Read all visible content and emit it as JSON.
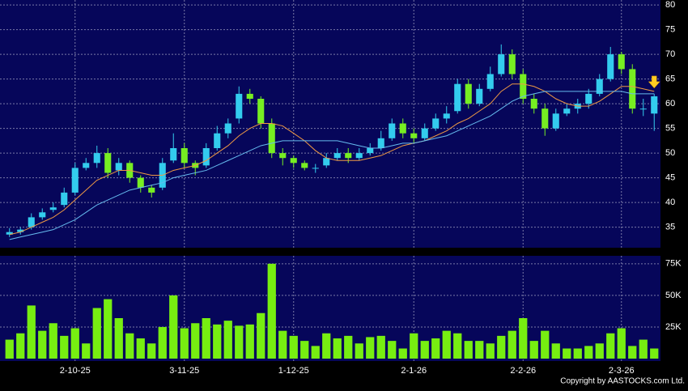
{
  "chart_data": {
    "type": "candlestick",
    "categories": [
      null,
      null,
      null,
      null,
      null,
      null,
      "2-10-25",
      null,
      null,
      null,
      null,
      null,
      null,
      null,
      null,
      null,
      "3-11-25",
      null,
      null,
      null,
      null,
      null,
      null,
      null,
      null,
      null,
      "1-12-25",
      null,
      null,
      null,
      null,
      null,
      null,
      null,
      null,
      null,
      null,
      "2-1-26",
      null,
      null,
      null,
      null,
      null,
      null,
      null,
      null,
      null,
      "2-2-26",
      null,
      null,
      null,
      null,
      null,
      null,
      null,
      null,
      "2-3-26",
      null,
      null,
      null
    ],
    "open": [
      33.5,
      34,
      35,
      37,
      38.5,
      39.5,
      42,
      47,
      48,
      50,
      46.5,
      48,
      45,
      43,
      43,
      48.5,
      51,
      48,
      47.5,
      51,
      54,
      57,
      62,
      61,
      56,
      50,
      49,
      48,
      47,
      47.5,
      49,
      50,
      49,
      50,
      51,
      53,
      56,
      54,
      53,
      55,
      57,
      58.5,
      64,
      60,
      63,
      66,
      70,
      66,
      61,
      59,
      55,
      58,
      59,
      60,
      62,
      65,
      70,
      67,
      59,
      58
    ],
    "high": [
      34.8,
      35,
      37.8,
      38.8,
      40,
      43,
      48,
      49,
      51.5,
      51,
      49,
      48.5,
      45.5,
      43.5,
      49,
      54,
      52,
      48.5,
      52,
      55.5,
      57,
      63.5,
      63,
      61.5,
      57,
      51,
      49.5,
      48.5,
      47.8,
      50,
      51,
      51,
      51,
      52,
      54.5,
      57,
      57,
      55,
      56,
      58,
      59.5,
      65,
      65,
      64,
      67.5,
      72,
      71,
      67,
      62,
      60,
      59,
      60,
      61,
      63,
      66,
      71.5,
      70.5,
      68,
      61,
      62
    ],
    "low": [
      33,
      33.5,
      34.5,
      36.5,
      38,
      39,
      41.5,
      46.5,
      47,
      45,
      45.5,
      44,
      42,
      41,
      42.5,
      48,
      47,
      45.5,
      47,
      50.5,
      53,
      56,
      60,
      55,
      49,
      47.5,
      47,
      46.5,
      46,
      47,
      48.5,
      48,
      48.5,
      49.5,
      50.5,
      52.5,
      53,
      52,
      52.5,
      54.5,
      56,
      58,
      59,
      59.5,
      62.5,
      65.5,
      65,
      60,
      58,
      53.5,
      54.5,
      57.5,
      58,
      59,
      61.5,
      64.5,
      66,
      58,
      57.5,
      54.5
    ],
    "close": [
      34,
      34.5,
      37,
      38,
      39,
      42,
      47,
      48,
      50,
      46,
      48,
      45,
      43,
      42,
      48,
      51,
      48,
      47,
      51,
      54,
      56,
      62,
      61,
      56,
      50,
      49,
      48,
      47,
      47,
      49,
      50,
      49,
      50,
      51,
      53,
      56,
      54,
      53,
      55,
      57,
      58,
      64,
      60,
      63,
      66,
      70,
      66,
      61,
      59,
      55,
      58,
      59,
      60,
      62,
      65,
      70,
      67,
      59,
      59,
      61.5
    ],
    "up_color": "#33ccee",
    "down_color": "#77ee22",
    "ma_lines": [
      {
        "color": "#ee9944",
        "values": [
          33.5,
          34,
          35,
          36,
          37,
          38.5,
          40.5,
          42.5,
          44.5,
          45.5,
          46.5,
          46.5,
          46,
          45.5,
          45.5,
          46.5,
          47,
          47.5,
          48.5,
          50,
          51.5,
          53.5,
          55,
          56,
          56,
          55.5,
          54,
          52.5,
          50.5,
          49,
          48.5,
          48.5,
          48.5,
          49,
          49.5,
          50.5,
          51.5,
          52,
          52.5,
          53.5,
          54.5,
          56,
          57,
          58.5,
          60,
          62.5,
          64,
          64,
          63.5,
          62.5,
          61,
          60,
          59.5,
          59.5,
          60.5,
          62,
          63.5,
          63.5,
          63,
          62.5
        ]
      },
      {
        "color": "#66bbee",
        "values": [
          32.5,
          33,
          33.5,
          34,
          34.5,
          35.5,
          36.5,
          38,
          39.5,
          40.5,
          41.5,
          42.5,
          43,
          43.5,
          44,
          45,
          45.5,
          46,
          46.5,
          47.5,
          48.5,
          49.5,
          50.5,
          51.5,
          52,
          52.5,
          52.5,
          52.5,
          52.5,
          52.5,
          52.5,
          52,
          51.5,
          51,
          51,
          51.5,
          52,
          52,
          52.5,
          53,
          53.5,
          54.5,
          55.5,
          56.5,
          57.5,
          59,
          60.5,
          61.5,
          62,
          62.5,
          62.5,
          62.5,
          62.5,
          62.5,
          62.5,
          62.5,
          62.5,
          62,
          62,
          62
        ]
      }
    ],
    "ylim": [
      31,
      81
    ],
    "yticks": [
      35,
      40,
      45,
      50,
      55,
      60,
      65,
      70,
      75,
      80
    ],
    "volume": [
      15000,
      20000,
      42000,
      22000,
      28000,
      18000,
      24000,
      12000,
      40000,
      47000,
      32000,
      20000,
      16000,
      12000,
      25000,
      50000,
      24000,
      28000,
      32000,
      27000,
      30000,
      26000,
      27000,
      36000,
      75000,
      22000,
      18000,
      14000,
      10000,
      20000,
      16000,
      18000,
      12000,
      17000,
      18000,
      14000,
      8000,
      20000,
      14000,
      16000,
      22000,
      20000,
      14000,
      14000,
      12000,
      18000,
      22000,
      32000,
      14000,
      22000,
      12000,
      8000,
      8000,
      10000,
      12000,
      20000,
      24000,
      10000,
      15000,
      8000
    ],
    "volume_color": "#77ee11",
    "volume_ylim": [
      0,
      80000
    ],
    "volume_yticks": [
      {
        "value": 25000,
        "label": "25K"
      },
      {
        "value": 50000,
        "label": "50K"
      },
      {
        "value": 75000,
        "label": "75K"
      }
    ],
    "grid": true,
    "copyright": "Copyright by AASTOCKS.com Ltd."
  }
}
